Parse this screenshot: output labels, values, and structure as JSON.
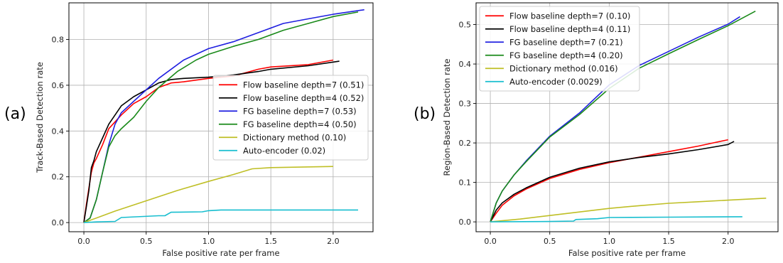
{
  "panels": {
    "a": {
      "letter": "(a)"
    },
    "b": {
      "letter": "(b)"
    }
  },
  "chart_data": [
    {
      "type": "line",
      "panel": "(a)",
      "xlabel": "False positive rate per frame",
      "ylabel": "Track-Based Detection rate",
      "xlim": [
        -0.12,
        2.32
      ],
      "ylim": [
        -0.04,
        0.96
      ],
      "xticks": [
        0.0,
        0.5,
        1.0,
        1.5,
        2.0
      ],
      "xtick_labels": [
        "0.0",
        "0.5",
        "1.0",
        "1.5",
        "2.0"
      ],
      "yticks": [
        0.0,
        0.2,
        0.4,
        0.6,
        0.8
      ],
      "ytick_labels": [
        "0.0",
        "0.2",
        "0.4",
        "0.6",
        "0.8"
      ],
      "grid": true,
      "legend_position": "center-right",
      "series": [
        {
          "name": "Flow baseline depth=7 (0.51)",
          "color": "#ff0000",
          "x": [
            0.0,
            0.02,
            0.04,
            0.06,
            0.08,
            0.1,
            0.15,
            0.2,
            0.3,
            0.4,
            0.5,
            0.6,
            0.7,
            0.8,
            1.0,
            1.2,
            1.4,
            1.5,
            1.8,
            2.0
          ],
          "y": [
            0.0,
            0.08,
            0.15,
            0.22,
            0.26,
            0.28,
            0.34,
            0.41,
            0.47,
            0.52,
            0.55,
            0.59,
            0.61,
            0.615,
            0.63,
            0.64,
            0.67,
            0.68,
            0.69,
            0.71
          ]
        },
        {
          "name": "Flow baseline depth=4 (0.52)",
          "color": "#000000",
          "x": [
            0.0,
            0.02,
            0.04,
            0.06,
            0.08,
            0.1,
            0.15,
            0.2,
            0.3,
            0.4,
            0.5,
            0.6,
            0.7,
            0.8,
            1.0,
            1.2,
            1.4,
            1.5,
            1.8,
            2.05
          ],
          "y": [
            0.0,
            0.07,
            0.14,
            0.24,
            0.27,
            0.31,
            0.37,
            0.43,
            0.51,
            0.55,
            0.58,
            0.61,
            0.625,
            0.63,
            0.635,
            0.645,
            0.66,
            0.67,
            0.685,
            0.705
          ]
        },
        {
          "name": "FG baseline depth=7 (0.53)",
          "color": "#1f1fe0",
          "x": [
            0.0,
            0.05,
            0.1,
            0.15,
            0.2,
            0.25,
            0.3,
            0.4,
            0.5,
            0.6,
            0.8,
            1.0,
            1.2,
            1.4,
            1.6,
            1.8,
            2.0,
            2.25
          ],
          "y": [
            0.0,
            0.02,
            0.1,
            0.22,
            0.34,
            0.43,
            0.48,
            0.53,
            0.58,
            0.63,
            0.71,
            0.76,
            0.79,
            0.83,
            0.87,
            0.89,
            0.91,
            0.93
          ]
        },
        {
          "name": "FG baseline depth=4 (0.50)",
          "color": "#1a8a1a",
          "x": [
            0.0,
            0.05,
            0.1,
            0.15,
            0.2,
            0.25,
            0.3,
            0.4,
            0.5,
            0.6,
            0.75,
            0.9,
            1.0,
            1.2,
            1.4,
            1.6,
            1.8,
            2.0,
            2.2
          ],
          "y": [
            0.0,
            0.02,
            0.1,
            0.22,
            0.33,
            0.38,
            0.41,
            0.46,
            0.53,
            0.59,
            0.66,
            0.71,
            0.735,
            0.77,
            0.8,
            0.84,
            0.87,
            0.9,
            0.92
          ]
        },
        {
          "name": "Dictionary method (0.10)",
          "color": "#bfbf26",
          "x": [
            0.0,
            0.1,
            0.25,
            0.5,
            0.75,
            1.0,
            1.2,
            1.35,
            1.5,
            2.0
          ],
          "y": [
            0.0,
            0.02,
            0.05,
            0.095,
            0.14,
            0.18,
            0.21,
            0.235,
            0.24,
            0.245
          ]
        },
        {
          "name": "Auto-encoder (0.02)",
          "color": "#17becf",
          "x": [
            0.0,
            0.1,
            0.25,
            0.3,
            0.6,
            0.65,
            0.7,
            0.95,
            1.0,
            1.1,
            1.5,
            2.2
          ],
          "y": [
            0.0,
            0.003,
            0.005,
            0.022,
            0.03,
            0.03,
            0.045,
            0.047,
            0.052,
            0.055,
            0.055,
            0.055
          ]
        }
      ]
    },
    {
      "type": "line",
      "panel": "(b)",
      "xlabel": "False positive rate per frame",
      "ylabel": "Region-Based Detection rate",
      "xlim": [
        -0.12,
        2.42
      ],
      "ylim": [
        -0.025,
        0.555
      ],
      "xticks": [
        0.0,
        0.5,
        1.0,
        1.5,
        2.0
      ],
      "xtick_labels": [
        "0.0",
        "0.5",
        "1.0",
        "1.5",
        "2.0"
      ],
      "yticks": [
        0.0,
        0.1,
        0.2,
        0.3,
        0.4,
        0.5
      ],
      "ytick_labels": [
        "0.0",
        "0.1",
        "0.2",
        "0.3",
        "0.4",
        "0.5"
      ],
      "grid": true,
      "legend_position": "upper-left",
      "series": [
        {
          "name": "Flow baseline depth=7 (0.10)",
          "color": "#ff0000",
          "x": [
            0.0,
            0.05,
            0.1,
            0.2,
            0.3,
            0.5,
            0.75,
            1.0,
            1.25,
            1.5,
            1.75,
            2.0
          ],
          "y": [
            0.0,
            0.022,
            0.042,
            0.066,
            0.083,
            0.11,
            0.133,
            0.15,
            0.164,
            0.178,
            0.192,
            0.208
          ]
        },
        {
          "name": "Flow baseline depth=4 (0.11)",
          "color": "#000000",
          "x": [
            0.0,
            0.05,
            0.1,
            0.2,
            0.3,
            0.5,
            0.75,
            1.0,
            1.25,
            1.5,
            1.75,
            2.0,
            2.05
          ],
          "y": [
            0.0,
            0.03,
            0.048,
            0.07,
            0.086,
            0.113,
            0.136,
            0.152,
            0.163,
            0.172,
            0.183,
            0.196,
            0.204
          ]
        },
        {
          "name": "FG baseline depth=7 (0.21)",
          "color": "#1f1fe0",
          "x": [
            0.0,
            0.05,
            0.1,
            0.2,
            0.3,
            0.5,
            0.75,
            1.0,
            1.25,
            1.5,
            1.75,
            2.0,
            2.1
          ],
          "y": [
            0.0,
            0.048,
            0.078,
            0.119,
            0.154,
            0.217,
            0.276,
            0.347,
            0.396,
            0.432,
            0.468,
            0.501,
            0.52
          ]
        },
        {
          "name": "FG baseline depth=4 (0.20)",
          "color": "#1a8a1a",
          "x": [
            0.0,
            0.05,
            0.1,
            0.2,
            0.3,
            0.5,
            0.75,
            1.0,
            1.25,
            1.5,
            1.75,
            2.0,
            2.23
          ],
          "y": [
            0.0,
            0.048,
            0.078,
            0.119,
            0.152,
            0.215,
            0.272,
            0.338,
            0.389,
            0.426,
            0.462,
            0.497,
            0.534
          ]
        },
        {
          "name": "Dictionary method (0.016)",
          "color": "#bfbf26",
          "x": [
            0.0,
            0.25,
            0.5,
            0.75,
            1.0,
            1.25,
            1.5,
            1.75,
            2.0,
            2.32
          ],
          "y": [
            0.0,
            0.007,
            0.016,
            0.025,
            0.034,
            0.041,
            0.047,
            0.051,
            0.055,
            0.06
          ]
        },
        {
          "name": "Auto-encoder (0.0029)",
          "color": "#17becf",
          "x": [
            0.0,
            0.5,
            0.7,
            0.72,
            0.9,
            1.0,
            1.5,
            2.12
          ],
          "y": [
            0.0,
            0.001,
            0.002,
            0.006,
            0.008,
            0.011,
            0.012,
            0.013
          ]
        }
      ]
    }
  ]
}
